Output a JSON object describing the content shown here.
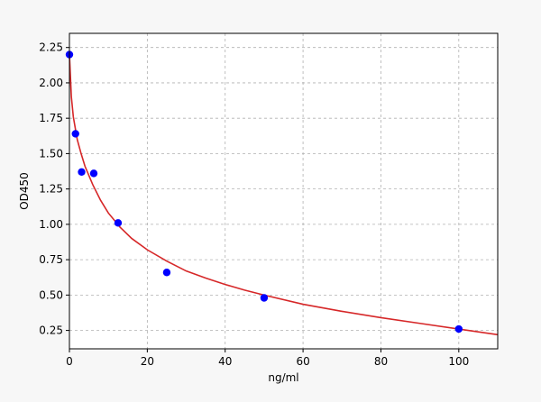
{
  "chart_data": {
    "type": "scatter",
    "xlabel": "ng/ml",
    "ylabel": "OD450",
    "xlim": [
      0,
      110
    ],
    "ylim": [
      0.12,
      2.35
    ],
    "x_ticks": [
      0,
      20,
      40,
      60,
      80,
      100
    ],
    "y_ticks": [
      0.25,
      0.5,
      0.75,
      1.0,
      1.25,
      1.5,
      1.75,
      2.0,
      2.25
    ],
    "x_tick_labels": [
      "0",
      "20",
      "40",
      "60",
      "80",
      "100"
    ],
    "y_tick_labels": [
      "0.25",
      "0.50",
      "0.75",
      "1.00",
      "1.25",
      "1.50",
      "1.75",
      "2.00",
      "2.25"
    ],
    "grid": true,
    "series": [
      {
        "kind": "points",
        "color": "#0000ff",
        "x": [
          0,
          1.56,
          3.13,
          6.25,
          12.5,
          25,
          50,
          100
        ],
        "y": [
          2.2,
          1.64,
          1.37,
          1.36,
          1.01,
          0.66,
          0.48,
          0.26
        ]
      },
      {
        "kind": "fit-curve",
        "color": "#d62728",
        "x": [
          0,
          0.5,
          1,
          2,
          3,
          4,
          6,
          8,
          10,
          13,
          16,
          20,
          25,
          30,
          35,
          40,
          45,
          50,
          60,
          70,
          80,
          90,
          100,
          110
        ],
        "y": [
          2.2,
          1.9,
          1.76,
          1.6,
          1.5,
          1.41,
          1.28,
          1.17,
          1.08,
          0.98,
          0.9,
          0.82,
          0.74,
          0.67,
          0.62,
          0.575,
          0.535,
          0.5,
          0.435,
          0.385,
          0.34,
          0.3,
          0.26,
          0.22
        ]
      }
    ]
  }
}
